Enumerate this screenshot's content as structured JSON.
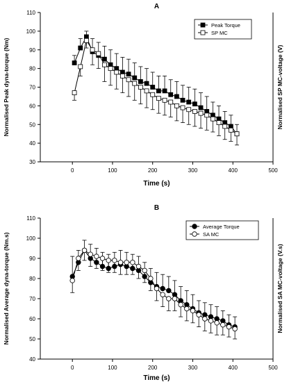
{
  "chart_data": [
    {
      "type": "line",
      "panel_label": "A",
      "xlabel": "Time (s)",
      "ylabel": "Normalised Peak dyna-torque (Nm)",
      "ylabel_right": "Normalised SP MC-voltage (V)",
      "xlim": [
        -80,
        500
      ],
      "ylim": [
        30,
        110
      ],
      "xticks": [
        0,
        100,
        200,
        300,
        400,
        500
      ],
      "yticks": [
        30,
        40,
        50,
        60,
        70,
        80,
        90,
        100,
        110
      ],
      "grid": false,
      "legend_position": "top-right",
      "x": [
        5,
        20,
        35,
        50,
        65,
        80,
        95,
        110,
        125,
        140,
        155,
        170,
        185,
        200,
        215,
        230,
        245,
        260,
        275,
        290,
        305,
        320,
        335,
        350,
        365,
        380,
        395,
        410
      ],
      "series": [
        {
          "name": "Peak Torque",
          "marker": "filled-square",
          "values": [
            83,
            91,
            97,
            89,
            87,
            85,
            82,
            80,
            78,
            77,
            75,
            73,
            72,
            70,
            68,
            68,
            66,
            65,
            63,
            62,
            61,
            59,
            57,
            55,
            53,
            51,
            49,
            45
          ],
          "error": [
            4,
            5,
            3,
            7,
            7,
            7,
            8,
            8,
            8,
            8,
            8,
            8,
            8,
            8,
            8,
            8,
            8,
            8,
            8,
            8,
            8,
            8,
            8,
            7,
            7,
            6,
            6,
            5
          ]
        },
        {
          "name": "SP MC",
          "marker": "open-square",
          "values": [
            67,
            81,
            95,
            90,
            88,
            82,
            80,
            78,
            76,
            74,
            72,
            70,
            68,
            66,
            64,
            63,
            62,
            60,
            59,
            58,
            57,
            56,
            55,
            53,
            51,
            49,
            47,
            45
          ],
          "error": [
            4,
            5,
            4,
            8,
            8,
            9,
            9,
            9,
            9,
            9,
            9,
            9,
            9,
            8,
            8,
            8,
            8,
            8,
            8,
            8,
            8,
            8,
            8,
            7,
            7,
            7,
            6,
            6
          ]
        }
      ]
    },
    {
      "type": "line",
      "panel_label": "B",
      "xlabel": "Time (s)",
      "ylabel": "Normalised Average dyna-torque (Nm.s)",
      "ylabel_right": "Normalised SA MC-voltage (V.s)",
      "xlim": [
        -80,
        500
      ],
      "ylim": [
        40,
        110
      ],
      "xticks": [
        0,
        100,
        200,
        300,
        400,
        500
      ],
      "yticks": [
        40,
        50,
        60,
        70,
        80,
        90,
        100,
        110
      ],
      "grid": false,
      "legend_position": "top-right",
      "x": [
        0,
        15,
        30,
        45,
        60,
        75,
        90,
        105,
        120,
        135,
        150,
        165,
        180,
        195,
        210,
        225,
        240,
        255,
        270,
        285,
        300,
        315,
        330,
        345,
        360,
        375,
        390,
        405
      ],
      "series": [
        {
          "name": "Average Torque",
          "marker": "filled-circle",
          "values": [
            81,
            88,
            94,
            90,
            88,
            86,
            85,
            86,
            87,
            86,
            85,
            84,
            81,
            78,
            76,
            75,
            74,
            72,
            69,
            67,
            65,
            63,
            62,
            61,
            60,
            59,
            57,
            56
          ],
          "error": [
            10,
            6,
            5,
            7,
            7,
            7,
            7,
            7,
            7,
            7,
            7,
            7,
            7,
            7,
            7,
            7,
            7,
            7,
            7,
            7,
            7,
            6,
            6,
            6,
            6,
            5,
            5,
            5
          ]
        },
        {
          "name": "SA MC",
          "marker": "open-circle",
          "values": [
            79,
            90,
            94,
            92,
            91,
            90,
            89,
            89,
            88,
            88,
            88,
            86,
            84,
            80,
            75,
            72,
            70,
            70,
            67,
            65,
            64,
            62,
            60,
            59,
            58,
            57,
            56,
            55
          ],
          "error": [
            6,
            6,
            5,
            6,
            6,
            6,
            6,
            6,
            6,
            6,
            6,
            6,
            6,
            6,
            6,
            6,
            6,
            6,
            6,
            6,
            6,
            6,
            6,
            6,
            6,
            5,
            5,
            5
          ]
        }
      ]
    }
  ]
}
